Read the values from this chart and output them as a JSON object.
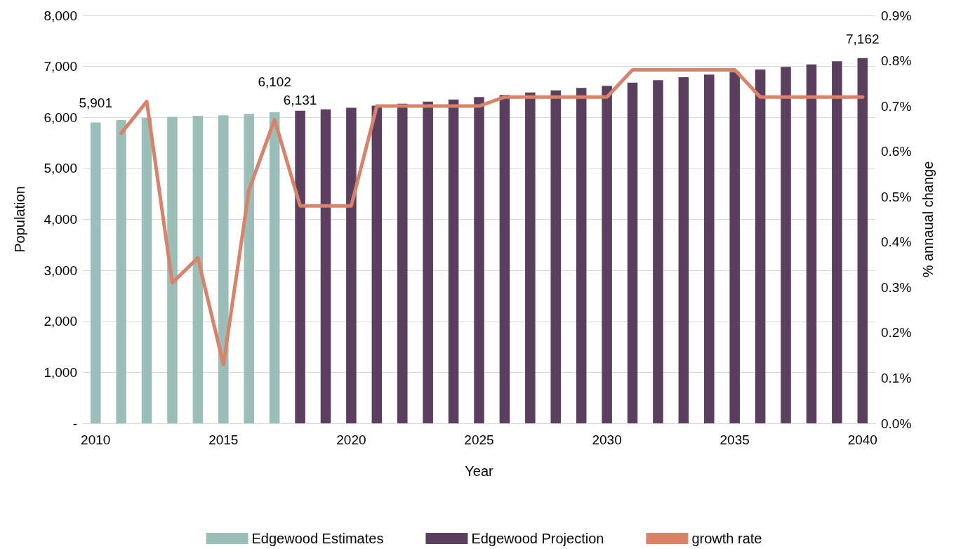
{
  "chart_data": {
    "type": "bar",
    "stacked": true,
    "xlabel": "Year",
    "ylabel": "Population",
    "y2label": "% annaual change",
    "categories": [
      "2010",
      null,
      null,
      null,
      null,
      "2015",
      null,
      null,
      null,
      null,
      "2020",
      null,
      null,
      null,
      null,
      "2025",
      null,
      null,
      null,
      null,
      "2030",
      null,
      null,
      null,
      null,
      "2035",
      null,
      null,
      null,
      null,
      "2040"
    ],
    "series": [
      {
        "name": "Edgewood Estimates",
        "color": "#9bbfb8",
        "values": [
          5901,
          5950,
          5990,
          6010,
          6030,
          6040,
          6070,
          6102,
          null,
          null,
          null,
          null,
          null,
          null,
          null,
          null,
          null,
          null,
          null,
          null,
          null,
          null,
          null,
          null,
          null,
          null,
          null,
          null,
          null,
          null,
          null
        ],
        "value_labels": [
          "5,901",
          null,
          null,
          null,
          null,
          null,
          null,
          "6,102",
          null,
          null,
          null,
          null,
          null,
          null,
          null,
          null,
          null,
          null,
          null,
          null,
          null,
          null,
          null,
          null,
          null,
          null,
          null,
          null,
          null,
          null,
          null
        ]
      },
      {
        "name": "Edgewood Projection",
        "color": "#5b3f5e",
        "values": [
          null,
          null,
          null,
          null,
          null,
          null,
          null,
          null,
          6131,
          6160,
          6190,
          6230,
          6270,
          6310,
          6350,
          6400,
          6440,
          6490,
          6530,
          6580,
          6620,
          6680,
          6730,
          6790,
          6840,
          6890,
          6940,
          6990,
          7040,
          7100,
          7162
        ],
        "value_labels": [
          null,
          null,
          null,
          null,
          null,
          null,
          null,
          null,
          "6,131",
          null,
          null,
          null,
          null,
          null,
          null,
          null,
          null,
          null,
          null,
          null,
          null,
          null,
          null,
          null,
          null,
          null,
          null,
          null,
          null,
          null,
          "7,162"
        ]
      },
      {
        "name": "growth rate",
        "type": "line",
        "axis": "y2",
        "color": "#d9826a",
        "values": [
          null,
          0.64,
          0.71,
          0.31,
          0.365,
          0.13,
          0.515,
          0.67,
          0.48,
          0.48,
          0.48,
          0.7,
          0.7,
          0.7,
          0.7,
          0.7,
          0.72,
          0.72,
          0.72,
          0.72,
          0.72,
          0.78,
          0.78,
          0.78,
          0.78,
          0.78,
          0.72,
          0.72,
          0.72,
          0.72,
          0.72
        ]
      }
    ],
    "ylim": [
      0,
      8000
    ],
    "yticks": [
      {
        "value": 0,
        "label": "-"
      },
      {
        "value": 1000,
        "label": "1,000"
      },
      {
        "value": 2000,
        "label": "2,000"
      },
      {
        "value": 3000,
        "label": "3,000"
      },
      {
        "value": 4000,
        "label": "4,000"
      },
      {
        "value": 5000,
        "label": "5,000"
      },
      {
        "value": 6000,
        "label": "6,000"
      },
      {
        "value": 7000,
        "label": "7,000"
      },
      {
        "value": 8000,
        "label": "8,000"
      }
    ],
    "y2lim": [
      0,
      0.9
    ],
    "y2ticks": [
      {
        "value": 0,
        "label": "0.0%"
      },
      {
        "value": 0.1,
        "label": "0.1%"
      },
      {
        "value": 0.2,
        "label": "0.2%"
      },
      {
        "value": 0.3,
        "label": "0.3%"
      },
      {
        "value": 0.4,
        "label": "0.4%"
      },
      {
        "value": 0.5,
        "label": "0.5%"
      },
      {
        "value": 0.6,
        "label": "0.6%"
      },
      {
        "value": 0.7,
        "label": "0.7%"
      },
      {
        "value": 0.8,
        "label": "0.8%"
      },
      {
        "value": 0.9,
        "label": "0.9%"
      }
    ],
    "grid": "y",
    "legend": "bottom",
    "marker": "none",
    "line_style": "solid"
  }
}
